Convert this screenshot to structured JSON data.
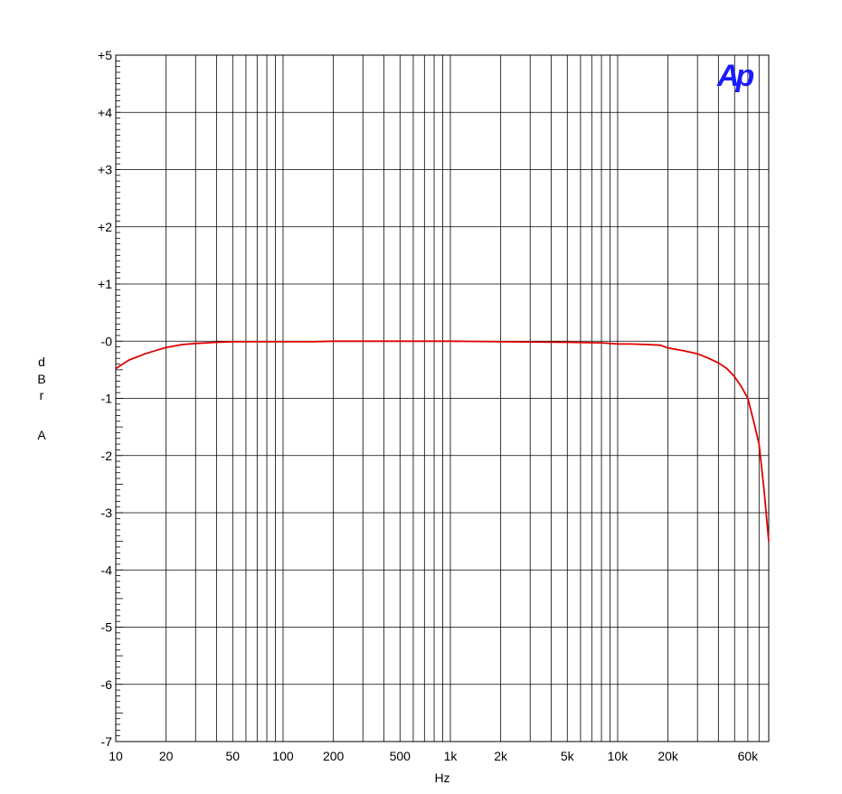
{
  "chart_data": {
    "type": "line",
    "title": "",
    "xlabel": "Hz",
    "ylabel": "d B r A",
    "x_scale": "log",
    "xlim": [
      10,
      80000
    ],
    "ylim": [
      -7,
      5
    ],
    "grid": true,
    "x_tick_labels": [
      "10",
      "20",
      "50",
      "100",
      "200",
      "500",
      "1k",
      "2k",
      "5k",
      "10k",
      "20k",
      "60k"
    ],
    "x_tick_values": [
      10,
      20,
      50,
      100,
      200,
      500,
      1000,
      2000,
      5000,
      10000,
      20000,
      60000
    ],
    "y_tick_labels": [
      "+5",
      "+4",
      "+3",
      "+2",
      "+1",
      "-0",
      "-1",
      "-2",
      "-3",
      "-4",
      "-5",
      "-6",
      "-7"
    ],
    "y_tick_values": [
      5,
      4,
      3,
      2,
      1,
      0,
      -1,
      -2,
      -3,
      -4,
      -5,
      -6,
      -7
    ],
    "logo_text": "Ap",
    "colors": {
      "series": "#e00000",
      "grid": "#000000",
      "logo": "#1a1aff"
    },
    "series": [
      {
        "x": [
          10,
          12,
          15,
          18,
          20,
          25,
          30,
          40,
          50,
          70,
          100,
          150,
          200,
          500,
          1000,
          2000,
          5000,
          8000,
          10000,
          12000,
          15000,
          18000,
          20000,
          25000,
          30000,
          35000,
          40000,
          45000,
          50000,
          55000,
          60000,
          65000,
          70000,
          75000,
          80000
        ],
        "y": [
          -0.48,
          -0.33,
          -0.22,
          -0.15,
          -0.11,
          -0.06,
          -0.04,
          -0.02,
          -0.01,
          -0.01,
          -0.01,
          -0.01,
          0.0,
          0.0,
          0.0,
          -0.01,
          -0.02,
          -0.03,
          -0.05,
          -0.05,
          -0.06,
          -0.07,
          -0.12,
          -0.17,
          -0.22,
          -0.3,
          -0.38,
          -0.48,
          -0.62,
          -0.8,
          -1.0,
          -1.4,
          -1.8,
          -2.6,
          -3.5
        ]
      }
    ]
  }
}
